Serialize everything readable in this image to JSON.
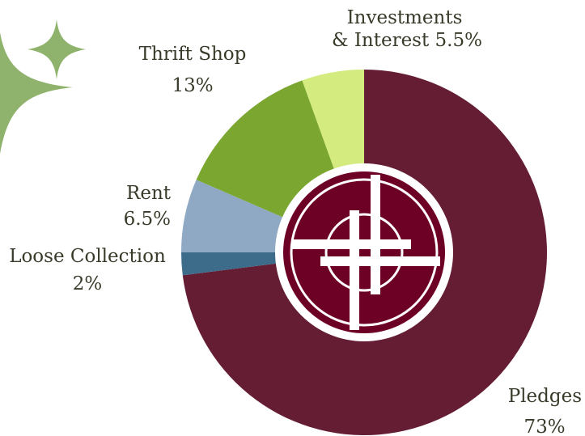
{
  "chart_data": {
    "type": "pie",
    "title": "",
    "slices": [
      {
        "label": "Pledges",
        "value": 73,
        "value_text": "73%",
        "color": "#651d34"
      },
      {
        "label": "Loose Collection",
        "value": 2,
        "value_text": "2%",
        "color": "#3d6c8a"
      },
      {
        "label": "Rent",
        "value": 6.5,
        "value_text": "6.5%",
        "color": "#8fa8c3"
      },
      {
        "label": "Thrift Shop",
        "value": 13,
        "value_text": "13%",
        "color": "#7ba62f"
      },
      {
        "label": "Investments & Interest",
        "value": 5.5,
        "value_text": "5.5%",
        "color": "#d3eb7f"
      }
    ]
  },
  "labels": {
    "investments_line1": "Investments",
    "investments_line2": "& Interest 5.5%",
    "thrift_name": "Thrift Shop",
    "thrift_value": "13%",
    "rent_name": "Rent",
    "rent_value": "6.5%",
    "loose_name": "Loose Collection",
    "loose_value": "2%",
    "pledges_name": "Pledges",
    "pledges_value": "73%"
  },
  "decor": {
    "sparkle_color": "#8fb26d",
    "logo_color": "#6d0025",
    "logo_ring_color": "#ffffff"
  }
}
